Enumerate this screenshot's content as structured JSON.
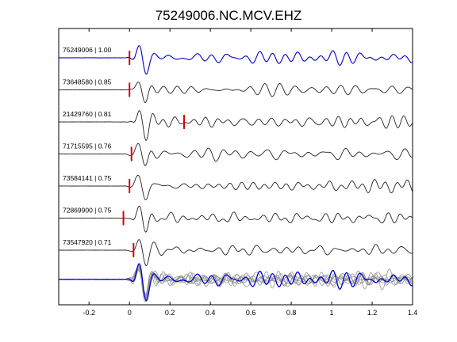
{
  "chart_data": {
    "type": "line",
    "title": "75249006.NC.MCV.EHZ",
    "xlabel": "",
    "ylabel": "",
    "xlim": [
      -0.35,
      1.4
    ],
    "x_ticks": [
      "-0.2",
      "0",
      "0.2",
      "0.4",
      "0.6",
      "0.8",
      "1",
      "1.2",
      "1.4"
    ],
    "x_tick_values": [
      -0.2,
      0,
      0.2,
      0.4,
      0.6,
      0.8,
      1.0,
      1.2,
      1.4
    ],
    "grid": false,
    "legend": "none",
    "reference_color": "#0000cc",
    "trace_color": "#222222",
    "stack_color": "#888888",
    "pick_color": "#dd0000",
    "traces": [
      {
        "label": "75249006 | 1.00",
        "pick_time": 0.0,
        "reference": true,
        "seed": 1
      },
      {
        "label": "73648580 | 0.85",
        "pick_time": 0.0,
        "reference": false,
        "seed": 2
      },
      {
        "label": "21429760 | 0.81",
        "pick_time": 0.27,
        "reference": false,
        "seed": 3
      },
      {
        "label": "71715595 | 0.76",
        "pick_time": 0.01,
        "reference": false,
        "seed": 4
      },
      {
        "label": "73584141 | 0.75",
        "pick_time": 0.0,
        "reference": false,
        "seed": 5
      },
      {
        "label": "72869900 | 0.75",
        "pick_time": -0.03,
        "reference": false,
        "seed": 6
      },
      {
        "label": "73547920 | 0.71",
        "pick_time": 0.02,
        "reference": false,
        "seed": 7
      }
    ]
  }
}
